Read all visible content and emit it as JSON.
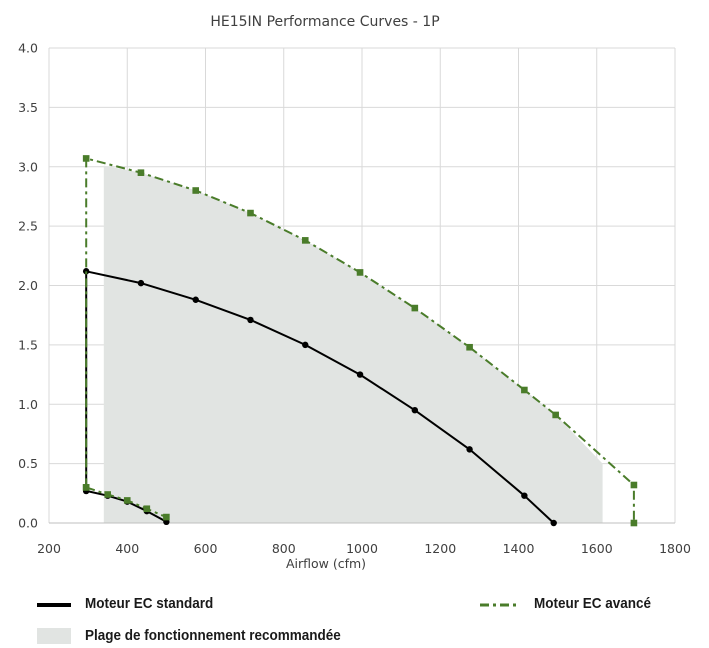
{
  "chart_data": {
    "type": "line",
    "title": "HE15IN Performance Curves - 1P",
    "xlabel": "Airflow (cfm)",
    "ylabel": "",
    "xlim": [
      200,
      1800
    ],
    "ylim": [
      0,
      4.0
    ],
    "x_ticks": [
      "200",
      "400",
      "600",
      "800",
      "1000",
      "1200",
      "1400",
      "1600",
      "1800"
    ],
    "y_ticks": [
      "0.0",
      "0.5",
      "1.0",
      "1.5",
      "2.0",
      "2.5",
      "3.0",
      "3.5",
      "4.0"
    ],
    "grid": true,
    "colors": {
      "standard": "#000000",
      "avance": "#4a7c2a",
      "plage": "#e1e4e2",
      "grid": "#d9d9d9"
    },
    "series": [
      {
        "name": "Moteur EC standard",
        "style": "solid",
        "marker": "circle",
        "segments": [
          {
            "x": [
              295,
              295,
              435,
              575,
              715,
              855,
              995,
              1135,
              1275,
              1415,
              1490
            ],
            "y": [
              0.27,
              2.12,
              2.02,
              1.88,
              1.71,
              1.5,
              1.25,
              0.95,
              0.62,
              0.23,
              0.0
            ]
          },
          {
            "x": [
              295,
              350,
              400,
              450,
              500
            ],
            "y": [
              0.27,
              0.23,
              0.18,
              0.1,
              0.01
            ]
          }
        ]
      },
      {
        "name": "Moteur EC avancé",
        "style": "dashdot",
        "marker": "square",
        "segments": [
          {
            "x": [
              295,
              295,
              435,
              575,
              715,
              855,
              995,
              1135,
              1275,
              1415,
              1495,
              1695,
              1695
            ],
            "y": [
              0.3,
              3.07,
              2.95,
              2.8,
              2.61,
              2.38,
              2.11,
              1.81,
              1.48,
              1.12,
              0.91,
              0.32,
              0.0
            ]
          },
          {
            "x": [
              295,
              350,
              400,
              450,
              500
            ],
            "y": [
              0.3,
              0.24,
              0.19,
              0.12,
              0.05
            ]
          }
        ]
      }
    ],
    "area": {
      "name": "Plage de fonctionnement recommandée",
      "x": [
        340,
        340,
        435,
        575,
        715,
        855,
        995,
        1135,
        1275,
        1415,
        1495,
        1615,
        1615
      ],
      "y": [
        0.0,
        3.01,
        2.95,
        2.8,
        2.61,
        2.38,
        2.11,
        1.81,
        1.48,
        1.12,
        0.91,
        0.5,
        0.0
      ]
    }
  },
  "legend": {
    "standard_label": "Moteur EC standard",
    "avance_label": "Moteur EC avancé",
    "plage_label": "Plage de fonctionnement recommandée"
  }
}
